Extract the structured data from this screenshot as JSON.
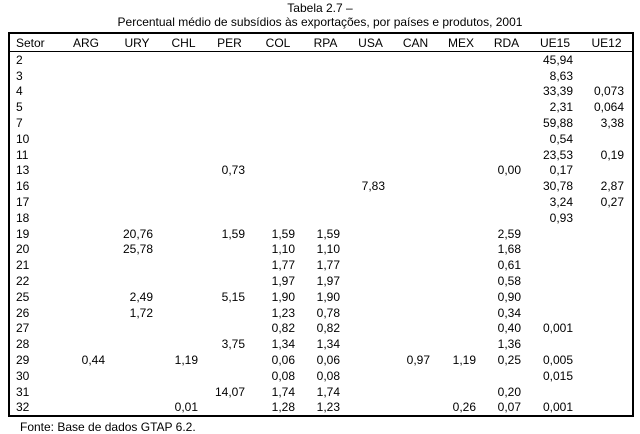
{
  "header": {
    "title": "Tabela 2.7 –",
    "subtitle": "Percentual médio de subsídios às exportações, por países e produtos, 2001"
  },
  "table": {
    "columns": [
      "Setor",
      "ARG",
      "URY",
      "CHL",
      "PER",
      "COL",
      "RPA",
      "USA",
      "CAN",
      "MEX",
      "RDA",
      "UE15",
      "UE12"
    ],
    "rows": [
      [
        "2",
        null,
        null,
        null,
        null,
        null,
        null,
        null,
        null,
        null,
        null,
        "45,94",
        null
      ],
      [
        "3",
        null,
        null,
        null,
        null,
        null,
        null,
        null,
        null,
        null,
        null,
        "8,63",
        null
      ],
      [
        "4",
        null,
        null,
        null,
        null,
        null,
        null,
        null,
        null,
        null,
        null,
        "33,39",
        "0,073"
      ],
      [
        "5",
        null,
        null,
        null,
        null,
        null,
        null,
        null,
        null,
        null,
        null,
        "2,31",
        "0,064"
      ],
      [
        "7",
        null,
        null,
        null,
        null,
        null,
        null,
        null,
        null,
        null,
        null,
        "59,88",
        "3,38"
      ],
      [
        "10",
        null,
        null,
        null,
        null,
        null,
        null,
        null,
        null,
        null,
        null,
        "0,54",
        null
      ],
      [
        "11",
        null,
        null,
        null,
        null,
        null,
        null,
        null,
        null,
        null,
        null,
        "23,53",
        "0,19"
      ],
      [
        "13",
        null,
        null,
        null,
        "0,73",
        null,
        null,
        null,
        null,
        null,
        "0,00",
        "0,17",
        null
      ],
      [
        "16",
        null,
        null,
        null,
        null,
        null,
        null,
        "7,83",
        null,
        null,
        null,
        "30,78",
        "2,87"
      ],
      [
        "17",
        null,
        null,
        null,
        null,
        null,
        null,
        null,
        null,
        null,
        null,
        "3,24",
        "0,27"
      ],
      [
        "18",
        null,
        null,
        null,
        null,
        null,
        null,
        null,
        null,
        null,
        null,
        "0,93",
        null
      ],
      [
        "19",
        null,
        "20,76",
        null,
        "1,59",
        "1,59",
        "1,59",
        null,
        null,
        null,
        "2,59",
        null,
        null
      ],
      [
        "20",
        null,
        "25,78",
        null,
        null,
        "1,10",
        "1,10",
        null,
        null,
        null,
        "1,68",
        null,
        null
      ],
      [
        "21",
        null,
        null,
        null,
        null,
        "1,77",
        "1,77",
        null,
        null,
        null,
        "0,61",
        null,
        null
      ],
      [
        "22",
        null,
        null,
        null,
        null,
        "1,97",
        "1,97",
        null,
        null,
        null,
        "0,58",
        null,
        null
      ],
      [
        "25",
        null,
        "2,49",
        null,
        "5,15",
        "1,90",
        "1,90",
        null,
        null,
        null,
        "0,90",
        null,
        null
      ],
      [
        "26",
        null,
        "1,72",
        null,
        null,
        "1,23",
        "0,78",
        null,
        null,
        null,
        "0,34",
        null,
        null
      ],
      [
        "27",
        null,
        null,
        null,
        null,
        "0,82",
        "0,82",
        null,
        null,
        null,
        "0,40",
        "0,001",
        null
      ],
      [
        "28",
        null,
        null,
        null,
        "3,75",
        "1,34",
        "1,34",
        null,
        null,
        null,
        "1,36",
        null,
        null
      ],
      [
        "29",
        "0,44",
        null,
        "1,19",
        null,
        "0,06",
        "0,06",
        null,
        "0,97",
        "1,19",
        "0,25",
        "0,005",
        null
      ],
      [
        "30",
        null,
        null,
        null,
        null,
        "0,08",
        "0,08",
        null,
        null,
        null,
        null,
        "0,015",
        null
      ],
      [
        "31",
        null,
        null,
        null,
        "14,07",
        "1,74",
        "1,74",
        null,
        null,
        null,
        "0,20",
        null,
        null
      ],
      [
        "32",
        null,
        null,
        "0,01",
        null,
        "1,28",
        "1,23",
        null,
        null,
        "0,26",
        "0,07",
        "0,001",
        null
      ]
    ]
  },
  "footer": {
    "source": "Fonte: Base de dados GTAP 6.2."
  }
}
